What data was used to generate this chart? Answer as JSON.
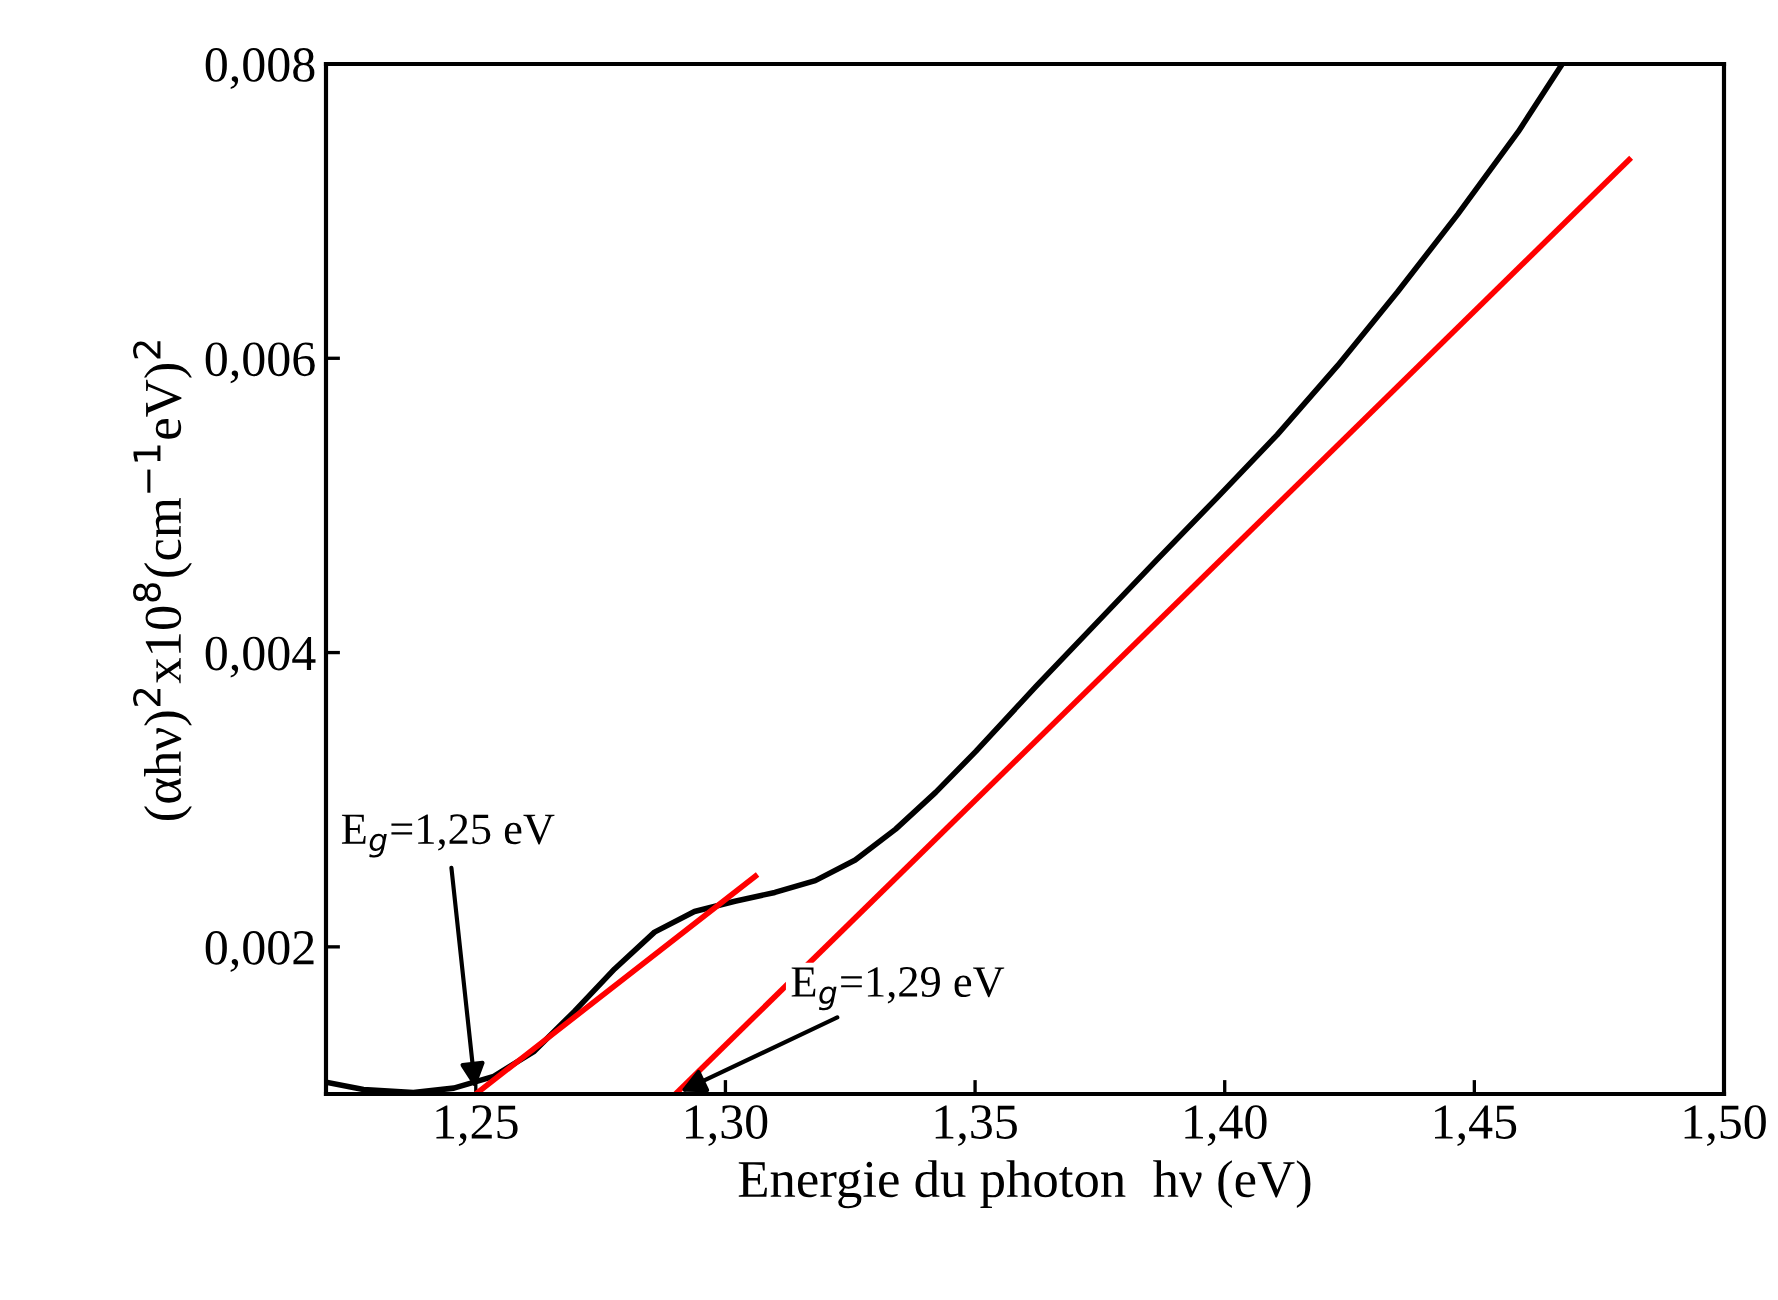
{
  "chart_data": {
    "type": "line",
    "xlabel": "Energie du photon  hν (eV)",
    "ylabel": "(αhν)$^{2}$x10$^{8}$(cm$^{−1}$eV)$^{2}$",
    "xlim": [
      1.22,
      1.5
    ],
    "ylim": [
      0.001,
      0.008
    ],
    "xticks": [
      {
        "value": 1.25,
        "label": "1,25"
      },
      {
        "value": 1.3,
        "label": "1,30"
      },
      {
        "value": 1.35,
        "label": "1,35"
      },
      {
        "value": 1.4,
        "label": "1,40"
      },
      {
        "value": 1.45,
        "label": "1,45"
      },
      {
        "value": 1.5,
        "label": "1,50"
      }
    ],
    "yticks": [
      {
        "value": 0.002,
        "label": "0,002"
      },
      {
        "value": 0.004,
        "label": "0,004"
      },
      {
        "value": 0.006,
        "label": "0,006"
      },
      {
        "value": 0.008,
        "label": "0,008"
      }
    ],
    "grid": false,
    "legend": false,
    "marker": "none",
    "line_style": "solid",
    "series": [
      {
        "color": "#000000",
        "x": [
          1.22,
          1.2275,
          1.2375,
          1.2456,
          1.2536,
          1.2617,
          1.2697,
          1.2778,
          1.2858,
          1.2938,
          1.3019,
          1.3099,
          1.318,
          1.326,
          1.3341,
          1.3421,
          1.3502,
          1.3622,
          1.3743,
          1.3864,
          1.3984,
          1.4105,
          1.4226,
          1.4346,
          1.4467,
          1.4588,
          1.4676
        ],
        "values": [
          0.00108,
          0.00103,
          0.00101,
          0.00104,
          0.00112,
          0.00129,
          0.00156,
          0.00185,
          0.0021,
          0.00224,
          0.00231,
          0.00237,
          0.00245,
          0.00259,
          0.0028,
          0.00305,
          0.00333,
          0.00377,
          0.0042,
          0.00463,
          0.00505,
          0.00548,
          0.00595,
          0.00645,
          0.00698,
          0.00754,
          0.008
        ]
      },
      {
        "color": "#ff0000",
        "x": [
          1.25,
          1.306
        ],
        "values": [
          0.001,
          0.00248
        ]
      },
      {
        "color": "#ff0000",
        "x": [
          1.29,
          1.481
        ],
        "values": [
          0.001,
          0.00735
        ]
      }
    ],
    "annotations": [
      {
        "text": "E$_{g}$=1,25 eV",
        "x": 1.25,
        "y": 0.001
      },
      {
        "text": "E$_{g}$=1,29 eV",
        "x": 1.29,
        "y": 0.001
      }
    ]
  }
}
